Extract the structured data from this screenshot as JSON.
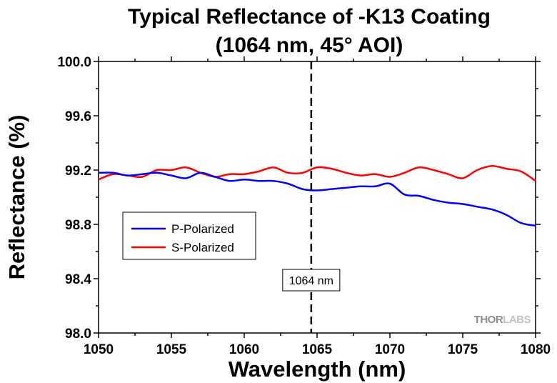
{
  "chart_data": {
    "type": "line",
    "title": "Typical Reflectance of -K13 Coating",
    "subtitle": "(1064 nm, 45° AOI)",
    "xlabel": "Wavelength (nm)",
    "ylabel": "Reflectance (%)",
    "xlim": [
      1050,
      1080
    ],
    "ylim": [
      98.0,
      100.0
    ],
    "xticks": [
      1050,
      1055,
      1060,
      1065,
      1070,
      1075,
      1080
    ],
    "yticks": [
      98.0,
      98.4,
      98.8,
      99.2,
      99.6,
      100.0
    ],
    "ytick_labels": [
      "98.0",
      "98.4",
      "98.8",
      "99.2",
      "99.6",
      "100.0"
    ],
    "grid": false,
    "legend_position": "center-left",
    "series": [
      {
        "name": "P-Polarized",
        "color": "#0000ff",
        "x": [
          1050,
          1051,
          1052,
          1053,
          1054,
          1055,
          1056,
          1057,
          1058,
          1059,
          1060,
          1061,
          1062,
          1063,
          1064,
          1065,
          1066,
          1067,
          1068,
          1069,
          1070,
          1071,
          1072,
          1073,
          1074,
          1075,
          1076,
          1077,
          1078,
          1079,
          1080
        ],
        "y": [
          99.18,
          99.18,
          99.16,
          99.17,
          99.18,
          99.16,
          99.14,
          99.18,
          99.15,
          99.12,
          99.13,
          99.12,
          99.12,
          99.1,
          99.06,
          99.05,
          99.06,
          99.07,
          99.08,
          99.08,
          99.1,
          99.02,
          99.01,
          98.98,
          98.96,
          98.95,
          98.93,
          98.91,
          98.87,
          98.81,
          98.79
        ]
      },
      {
        "name": "S-Polarized",
        "color": "#ff0000",
        "x": [
          1050,
          1051,
          1052,
          1053,
          1054,
          1055,
          1056,
          1057,
          1058,
          1059,
          1060,
          1061,
          1062,
          1063,
          1064,
          1065,
          1066,
          1067,
          1068,
          1069,
          1070,
          1071,
          1072,
          1073,
          1074,
          1075,
          1076,
          1077,
          1078,
          1079,
          1080
        ],
        "y": [
          99.13,
          99.17,
          99.16,
          99.15,
          99.2,
          99.2,
          99.22,
          99.18,
          99.15,
          99.17,
          99.17,
          99.19,
          99.22,
          99.18,
          99.18,
          99.22,
          99.21,
          99.18,
          99.16,
          99.17,
          99.15,
          99.18,
          99.22,
          99.2,
          99.17,
          99.14,
          99.2,
          99.23,
          99.21,
          99.19,
          99.12
        ]
      }
    ],
    "annotations": [
      {
        "type": "vline",
        "x": 1064.6,
        "style": "dashed",
        "label": "1064 nm"
      }
    ],
    "watermark": {
      "part1": "THOR",
      "part2": "LABS"
    }
  }
}
